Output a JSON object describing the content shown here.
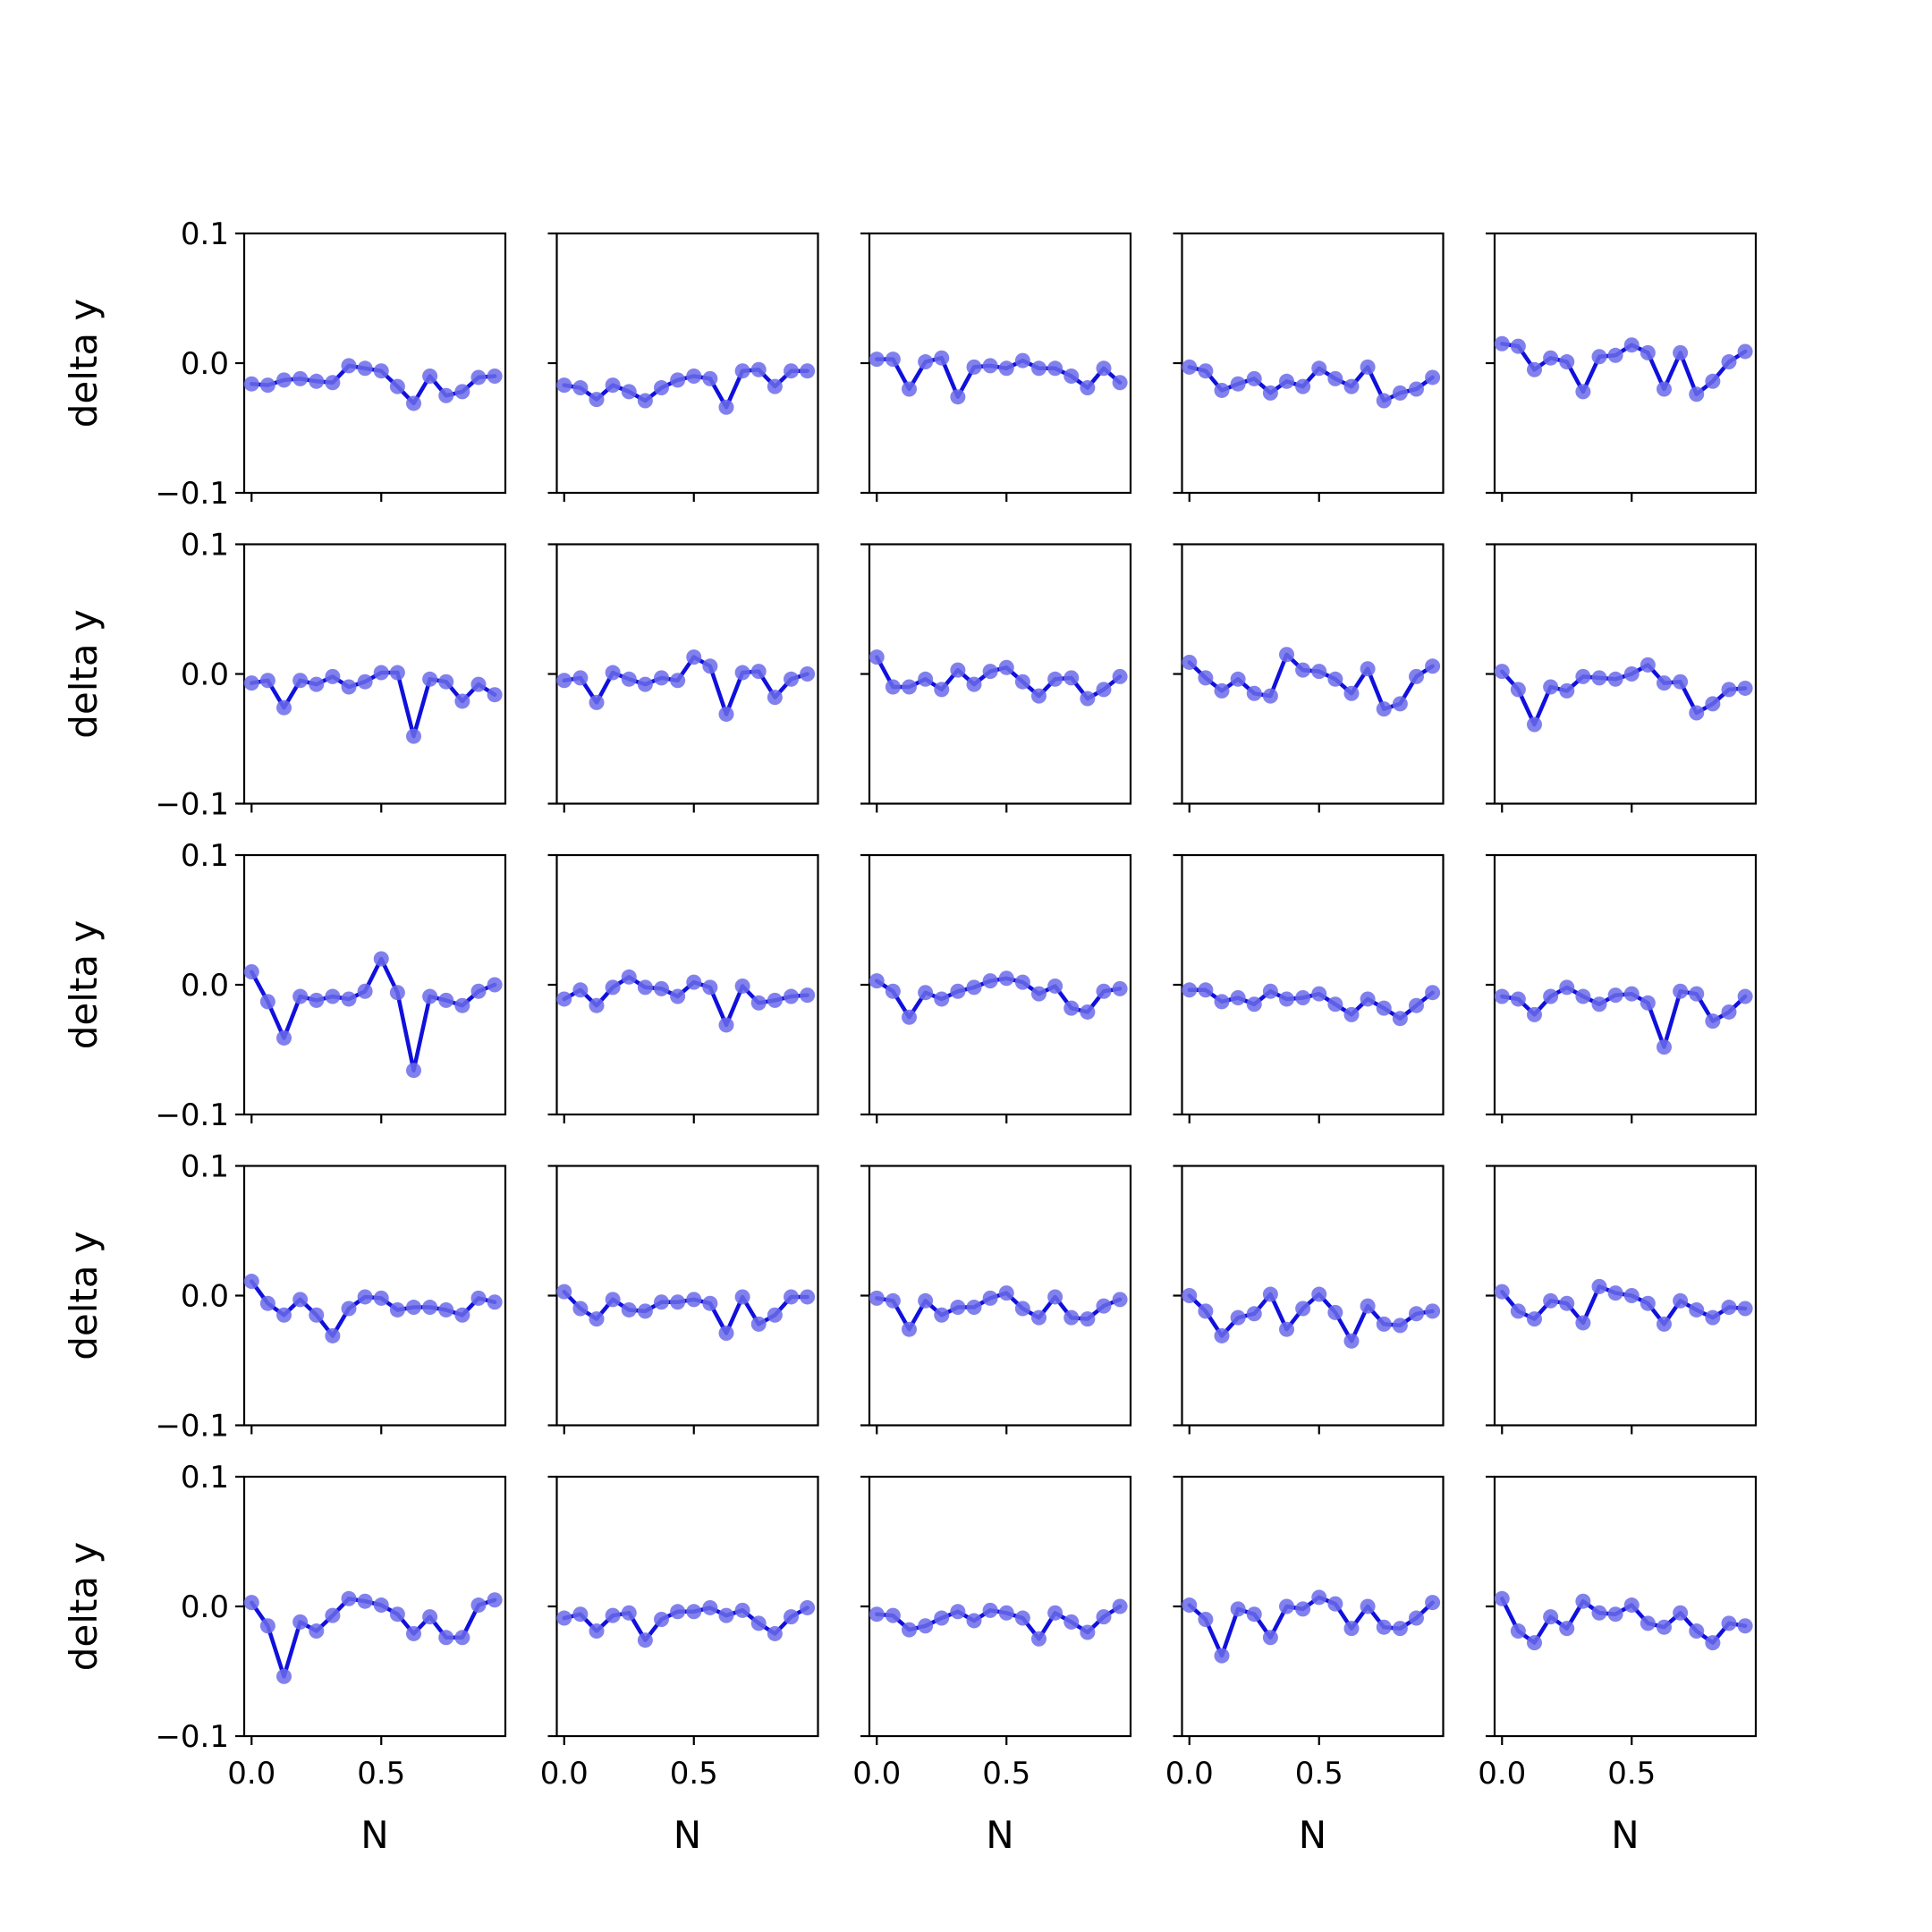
{
  "figure": {
    "rows": 5,
    "cols": 5
  },
  "colors": {
    "line": "#1010dd",
    "marker": "#6b6bea",
    "axes": "#000000",
    "background": "#ffffff"
  },
  "chart_data": {
    "type": "line",
    "layout": "5x5 small multiples",
    "xlabel": "N",
    "ylabel": "delta y",
    "xlim": [
      -0.0285,
      0.9785
    ],
    "ylim": [
      -0.1,
      0.1
    ],
    "xticks": [
      0.0,
      0.5
    ],
    "xtick_labels": [
      "0.0",
      "0.5"
    ],
    "yticks": [
      -0.1,
      0.0,
      0.1
    ],
    "ytick_labels": [
      "−0.1",
      "0.0",
      "0.1"
    ],
    "x": [
      0,
      0.0625,
      0.125,
      0.1875,
      0.25,
      0.3125,
      0.375,
      0.4375,
      0.5,
      0.5625,
      0.625,
      0.6875,
      0.75,
      0.8125,
      0.875,
      0.9375
    ],
    "panels": [
      [
        -0.016,
        -0.017,
        -0.013,
        -0.012,
        -0.014,
        -0.015,
        -0.002,
        -0.004,
        -0.006,
        -0.018,
        -0.031,
        -0.01,
        -0.025,
        -0.022,
        -0.011,
        -0.01
      ],
      [
        -0.017,
        -0.019,
        -0.028,
        -0.017,
        -0.022,
        -0.029,
        -0.019,
        -0.013,
        -0.01,
        -0.012,
        -0.034,
        -0.006,
        -0.005,
        -0.018,
        -0.006,
        -0.006
      ],
      [
        0.003,
        0.003,
        -0.02,
        0.001,
        0.004,
        -0.026,
        -0.003,
        -0.002,
        -0.004,
        0.002,
        -0.004,
        -0.004,
        -0.01,
        -0.019,
        -0.004,
        -0.015
      ],
      [
        -0.003,
        -0.006,
        -0.021,
        -0.016,
        -0.012,
        -0.023,
        -0.014,
        -0.018,
        -0.004,
        -0.012,
        -0.018,
        -0.003,
        -0.029,
        -0.023,
        -0.02,
        -0.011
      ],
      [
        0.015,
        0.013,
        -0.005,
        0.004,
        0.001,
        -0.022,
        0.005,
        0.006,
        0.014,
        0.008,
        -0.02,
        0.008,
        -0.024,
        -0.014,
        0.001,
        0.009
      ],
      [
        -0.007,
        -0.005,
        -0.026,
        -0.005,
        -0.008,
        -0.002,
        -0.01,
        -0.006,
        0.001,
        0.001,
        -0.048,
        -0.004,
        -0.006,
        -0.021,
        -0.008,
        -0.016
      ],
      [
        -0.005,
        -0.003,
        -0.022,
        0.001,
        -0.004,
        -0.008,
        -0.003,
        -0.005,
        0.013,
        0.006,
        -0.031,
        0.001,
        0.002,
        -0.018,
        -0.004,
        0.0
      ],
      [
        0.013,
        -0.01,
        -0.01,
        -0.004,
        -0.012,
        0.003,
        -0.008,
        0.002,
        0.005,
        -0.006,
        -0.017,
        -0.004,
        -0.003,
        -0.019,
        -0.012,
        -0.002
      ],
      [
        0.009,
        -0.003,
        -0.013,
        -0.004,
        -0.015,
        -0.017,
        0.015,
        0.003,
        0.002,
        -0.004,
        -0.015,
        0.004,
        -0.027,
        -0.023,
        -0.002,
        0.006
      ],
      [
        0.002,
        -0.012,
        -0.039,
        -0.01,
        -0.013,
        -0.002,
        -0.003,
        -0.004,
        0.0,
        0.007,
        -0.007,
        -0.006,
        -0.03,
        -0.023,
        -0.012,
        -0.011
      ],
      [
        0.01,
        -0.013,
        -0.041,
        -0.009,
        -0.012,
        -0.009,
        -0.011,
        -0.005,
        0.02,
        -0.006,
        -0.066,
        -0.009,
        -0.012,
        -0.016,
        -0.005,
        0.0
      ],
      [
        -0.011,
        -0.004,
        -0.016,
        -0.002,
        0.006,
        -0.002,
        -0.003,
        -0.009,
        0.002,
        -0.002,
        -0.031,
        -0.001,
        -0.014,
        -0.012,
        -0.009,
        -0.008
      ],
      [
        0.003,
        -0.005,
        -0.025,
        -0.006,
        -0.011,
        -0.005,
        -0.002,
        0.003,
        0.005,
        0.002,
        -0.007,
        -0.001,
        -0.018,
        -0.021,
        -0.005,
        -0.003
      ],
      [
        -0.004,
        -0.004,
        -0.013,
        -0.01,
        -0.015,
        -0.005,
        -0.011,
        -0.01,
        -0.007,
        -0.015,
        -0.023,
        -0.011,
        -0.018,
        -0.026,
        -0.016,
        -0.006
      ],
      [
        -0.009,
        -0.011,
        -0.023,
        -0.009,
        -0.002,
        -0.009,
        -0.015,
        -0.008,
        -0.007,
        -0.014,
        -0.048,
        -0.005,
        -0.007,
        -0.028,
        -0.021,
        -0.009
      ],
      [
        0.011,
        -0.006,
        -0.015,
        -0.003,
        -0.015,
        -0.031,
        -0.01,
        -0.001,
        -0.002,
        -0.011,
        -0.009,
        -0.009,
        -0.011,
        -0.015,
        -0.002,
        -0.005
      ],
      [
        0.003,
        -0.01,
        -0.018,
        -0.003,
        -0.011,
        -0.012,
        -0.005,
        -0.005,
        -0.003,
        -0.006,
        -0.029,
        -0.001,
        -0.022,
        -0.015,
        -0.001,
        -0.001
      ],
      [
        -0.002,
        -0.004,
        -0.026,
        -0.004,
        -0.015,
        -0.009,
        -0.009,
        -0.002,
        0.002,
        -0.01,
        -0.017,
        -0.001,
        -0.017,
        -0.018,
        -0.008,
        -0.003
      ],
      [
        0.0,
        -0.012,
        -0.031,
        -0.017,
        -0.014,
        0.001,
        -0.026,
        -0.01,
        0.001,
        -0.013,
        -0.035,
        -0.008,
        -0.022,
        -0.023,
        -0.014,
        -0.012
      ],
      [
        0.003,
        -0.012,
        -0.018,
        -0.004,
        -0.006,
        -0.021,
        0.007,
        0.002,
        0.0,
        -0.006,
        -0.022,
        -0.004,
        -0.011,
        -0.017,
        -0.009,
        -0.01
      ],
      [
        0.003,
        -0.015,
        -0.054,
        -0.012,
        -0.019,
        -0.007,
        0.006,
        0.004,
        0.001,
        -0.006,
        -0.021,
        -0.008,
        -0.024,
        -0.024,
        0.001,
        0.005
      ],
      [
        -0.009,
        -0.006,
        -0.019,
        -0.007,
        -0.005,
        -0.026,
        -0.01,
        -0.004,
        -0.004,
        -0.001,
        -0.007,
        -0.003,
        -0.013,
        -0.021,
        -0.008,
        -0.001
      ],
      [
        -0.006,
        -0.007,
        -0.018,
        -0.015,
        -0.009,
        -0.004,
        -0.011,
        -0.003,
        -0.005,
        -0.009,
        -0.025,
        -0.005,
        -0.012,
        -0.02,
        -0.008,
        0.0
      ],
      [
        0.001,
        -0.01,
        -0.038,
        -0.002,
        -0.006,
        -0.024,
        0.0,
        -0.002,
        0.007,
        0.002,
        -0.017,
        0.0,
        -0.016,
        -0.017,
        -0.009,
        0.003
      ],
      [
        0.006,
        -0.019,
        -0.028,
        -0.008,
        -0.017,
        0.004,
        -0.005,
        -0.006,
        0.001,
        -0.013,
        -0.016,
        -0.005,
        -0.019,
        -0.028,
        -0.013,
        -0.015
      ]
    ]
  }
}
